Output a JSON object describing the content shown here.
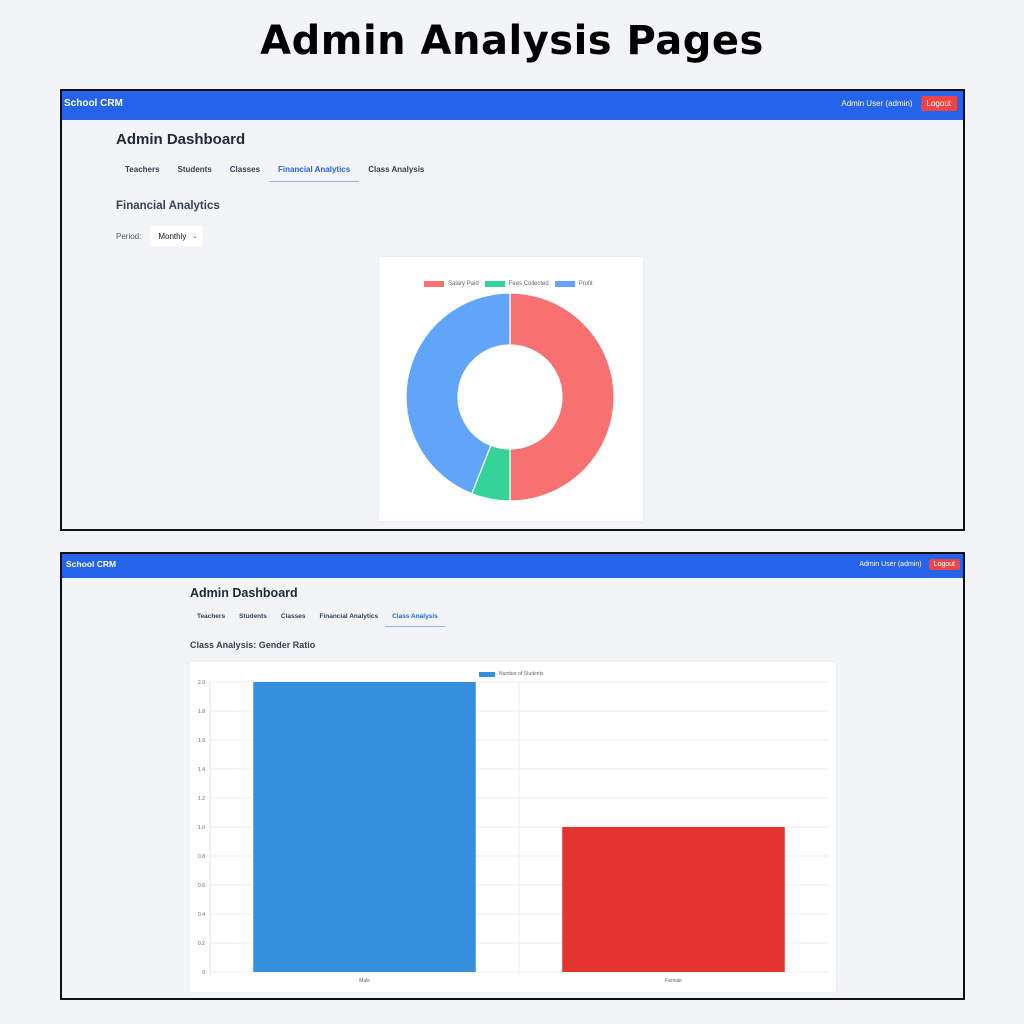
{
  "page_title": "Admin Analysis Pages",
  "screens": [
    {
      "navbar": {
        "brand": "School CRM",
        "user": "Admin User (admin)",
        "logout_label": "Logout"
      },
      "dashboard_title": "Admin Dashboard",
      "tabs": [
        {
          "label": "Teachers",
          "active": false
        },
        {
          "label": "Students",
          "active": false
        },
        {
          "label": "Classes",
          "active": false
        },
        {
          "label": "Financial Analytics",
          "active": true
        },
        {
          "label": "Class Analysis",
          "active": false
        }
      ],
      "section_title": "Financial Analytics",
      "period": {
        "label": "Period:",
        "selected": "Monthly",
        "chevron_icon": "chevron-down-icon"
      }
    },
    {
      "navbar": {
        "brand": "School CRM",
        "user": "Admin User (admin)",
        "logout_label": "Logout"
      },
      "dashboard_title": "Admin Dashboard",
      "tabs": [
        {
          "label": "Teachers",
          "active": false
        },
        {
          "label": "Students",
          "active": false
        },
        {
          "label": "Classes",
          "active": false
        },
        {
          "label": "Financial Analytics",
          "active": false
        },
        {
          "label": "Class Analysis",
          "active": true
        }
      ],
      "section_title": "Class Analysis: Gender Ratio"
    }
  ],
  "colors": {
    "navbar": "#2563eb",
    "logout": "#ef4444",
    "active_tab": "#2563eb",
    "salary_paid": "#f87171",
    "fees_collected": "#34d399",
    "profit": "#60a5fa",
    "male_bar": "#3490dc",
    "female_bar": "#e3342f"
  },
  "chart_data": [
    {
      "type": "pie",
      "subtype": "doughnut",
      "title": "",
      "labels": [
        "Salary Paid",
        "Fees Collected",
        "Profit"
      ],
      "values": [
        50,
        6,
        44
      ],
      "units": "percent of total (estimated from arc angles)",
      "colors": [
        "#f87171",
        "#34d399",
        "#60a5fa"
      ],
      "legend_position": "top"
    },
    {
      "type": "bar",
      "title": "",
      "categories": [
        "Male",
        "Female"
      ],
      "series": [
        {
          "name": "Number of Students",
          "values": [
            2,
            1
          ],
          "colors": [
            "#3490dc",
            "#e3342f"
          ]
        }
      ],
      "xlabel": "",
      "ylabel": "",
      "ylim": [
        0,
        2.0
      ],
      "yticks": [
        "0",
        "0.2",
        "0.4",
        "0.6",
        "0.8",
        "1.0",
        "1.2",
        "1.4",
        "1.6",
        "1.8",
        "2.0"
      ],
      "grid": true,
      "legend_position": "top"
    }
  ]
}
